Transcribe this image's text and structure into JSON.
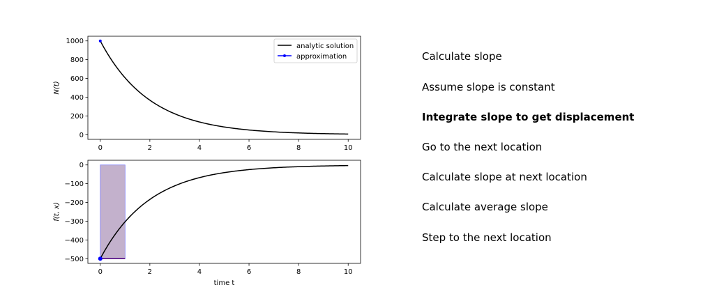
{
  "chart_data": [
    {
      "type": "line",
      "xlabel": "",
      "ylabel": "N(t)",
      "xlim": [
        -0.5,
        10.5
      ],
      "ylim": [
        -50,
        1050
      ],
      "xticks": [
        "0",
        "2",
        "4",
        "6",
        "8",
        "10"
      ],
      "yticks": [
        "0",
        "200",
        "400",
        "600",
        "800",
        "1000"
      ],
      "legend": {
        "placement": "top-right",
        "entries": [
          "analytic solution",
          "approximation"
        ]
      },
      "series": [
        {
          "name": "analytic solution",
          "color": "#000000",
          "function": "1000*exp(-0.5*t)",
          "x_range": [
            0,
            10
          ]
        },
        {
          "name": "approximation",
          "color": "#0000ff",
          "marker": "dot",
          "points": [
            {
              "x": 0,
              "y": 1000
            }
          ]
        }
      ]
    },
    {
      "type": "line",
      "xlabel": "time t",
      "ylabel": "f(t, x)",
      "xlim": [
        -0.5,
        10.5
      ],
      "ylim": [
        -525,
        25
      ],
      "xticks": [
        "0",
        "2",
        "4",
        "6",
        "8",
        "10"
      ],
      "yticks": [
        "0",
        "−100",
        "−200",
        "−300",
        "−400",
        "−500"
      ],
      "series": [
        {
          "name": "",
          "color": "#000000",
          "function": "-500*exp(-0.5*t)",
          "x_range": [
            0,
            10
          ]
        }
      ],
      "slope_point": {
        "x": 0,
        "y": -500,
        "color": "#0000ff"
      },
      "slope_segment": {
        "x": [
          0,
          1
        ],
        "y": -500,
        "color": "#4b0082"
      },
      "area": {
        "x": [
          0,
          1
        ],
        "y": [
          -500,
          0
        ],
        "fill": "#c3b1cc",
        "edge": "#8080ff"
      }
    }
  ],
  "steps": {
    "items": [
      "Calculate slope",
      "Assume slope is constant",
      "Integrate slope to get displacement",
      "Go to the next location",
      "Calculate slope at next location",
      "Calculate average slope",
      "Step to the next location"
    ],
    "active_index": 2
  }
}
